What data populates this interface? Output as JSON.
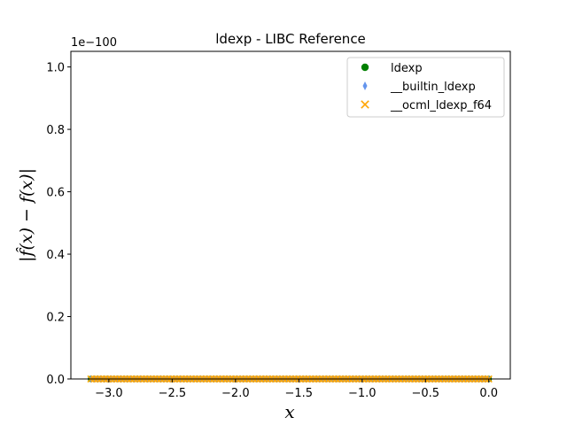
{
  "chart_data": {
    "type": "scatter",
    "title": "ldexp - LIBC Reference",
    "xlabel": "x",
    "ylabel": "|f̂(x) − f(x)|",
    "y_offset_label": "1e−100",
    "xlim": [
      -3.3,
      0.17
    ],
    "ylim": [
      0,
      1.05
    ],
    "y_scale_exponent": -100,
    "x_ticks": [
      -3.0,
      -2.5,
      -2.0,
      -1.5,
      -1.0,
      -0.5,
      0.0
    ],
    "x_tick_labels": [
      "−3.0",
      "−2.5",
      "−2.0",
      "−1.5",
      "−1.0",
      "−0.5",
      "0.0"
    ],
    "y_ticks": [
      0.0,
      0.2,
      0.4,
      0.6,
      0.8,
      1.0
    ],
    "y_tick_labels": [
      "0.0",
      "0.2",
      "0.4",
      "0.6",
      "0.8",
      "1.0"
    ],
    "x_range_of_points": [
      -3.14159,
      0.0
    ],
    "legend_position": "top-right",
    "series": [
      {
        "name": "ldexp",
        "marker": "circle",
        "color": "#008000",
        "y": 0
      },
      {
        "name": "__builtin_ldexp",
        "marker": "thin_diamond",
        "color": "#6495ED",
        "y": 0
      },
      {
        "name": "__ocml_ldexp_f64",
        "marker": "x",
        "color": "#FFA500",
        "y": 0
      }
    ]
  }
}
